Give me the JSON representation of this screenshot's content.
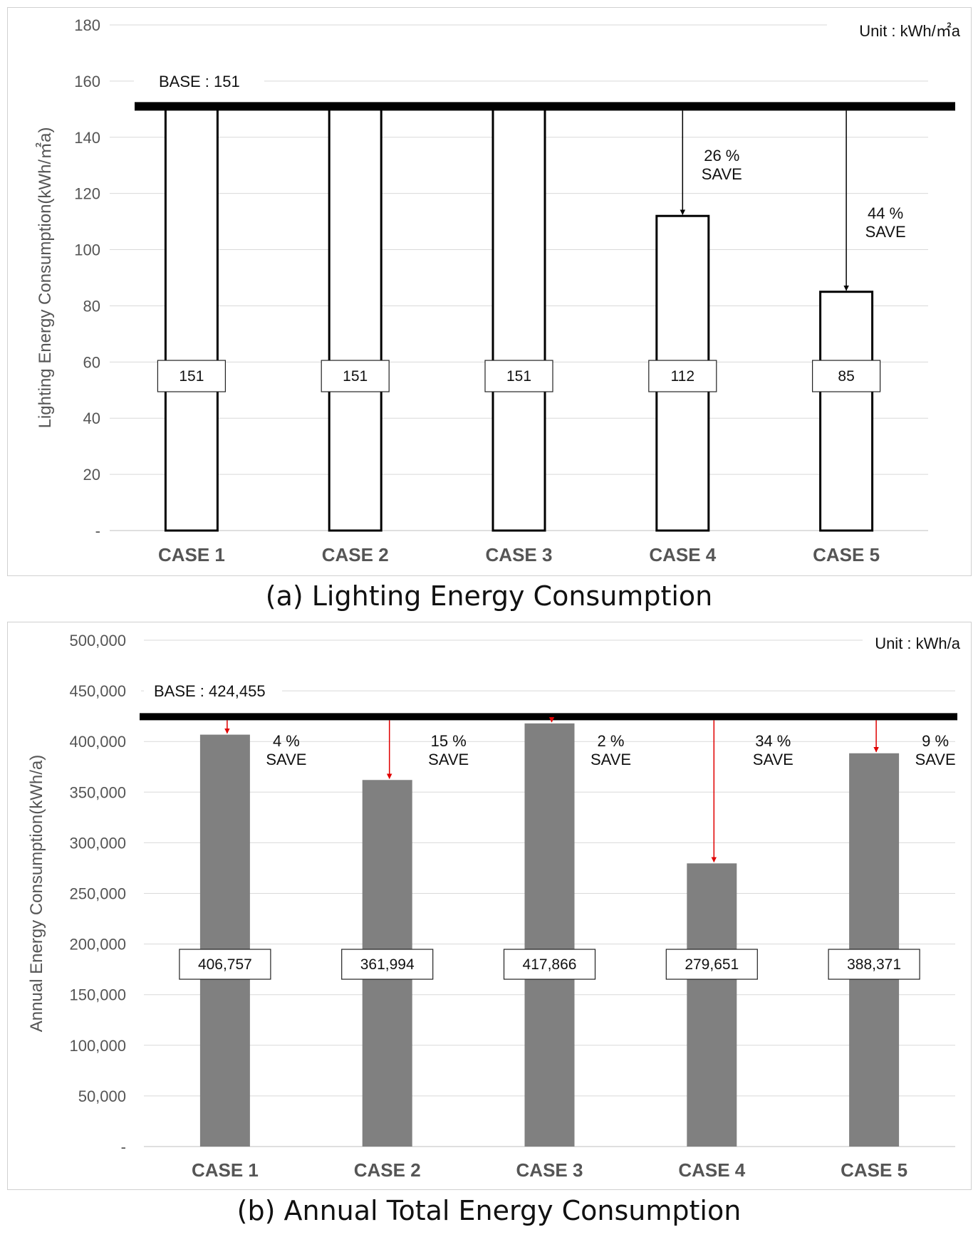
{
  "chart_data": [
    {
      "type": "bar",
      "caption": "(a) Lighting Energy Consumption",
      "ylabel": "Lighting Energy Consumption(kWh/㎡a)",
      "unit_label": "Unit : kWh/㎡a",
      "categories": [
        "CASE 1",
        "CASE 2",
        "CASE 3",
        "CASE 4",
        "CASE 5"
      ],
      "values": [
        151,
        151,
        151,
        112,
        85
      ],
      "value_labels": [
        "151",
        "151",
        "151",
        "112",
        "85"
      ],
      "ylim": [
        0,
        180
      ],
      "yticks": [
        0,
        20,
        40,
        60,
        80,
        100,
        120,
        140,
        160,
        180
      ],
      "ytick_labels": [
        "-",
        "20",
        "40",
        "60",
        "80",
        "100",
        "120",
        "140",
        "160",
        "180"
      ],
      "base_value": 151,
      "base_label": "BASE : 151",
      "savings": [
        {
          "index": 3,
          "percent": "26 %",
          "word": "SAVE"
        },
        {
          "index": 4,
          "percent": "44 %",
          "word": "SAVE"
        }
      ],
      "bar_style": "outline",
      "bar_fill": "#ffffff",
      "arrow_color": "#000000",
      "grid": true
    },
    {
      "type": "bar",
      "caption": "(b) Annual Total Energy Consumption",
      "ylabel": "Annual Energy Consumption(kWh/a)",
      "unit_label": "Unit : kWh/a",
      "categories": [
        "CASE 1",
        "CASE 2",
        "CASE 3",
        "CASE 4",
        "CASE 5"
      ],
      "values": [
        406757,
        361994,
        417866,
        279651,
        388371
      ],
      "value_labels": [
        "406,757",
        "361,994",
        "417,866",
        "279,651",
        "388,371"
      ],
      "ylim": [
        0,
        500000
      ],
      "yticks": [
        0,
        50000,
        100000,
        150000,
        200000,
        250000,
        300000,
        350000,
        400000,
        450000,
        500000
      ],
      "ytick_labels": [
        "-",
        "50,000",
        "100,000",
        "150,000",
        "200,000",
        "250,000",
        "300,000",
        "350,000",
        "400,000",
        "450,000",
        "500,000"
      ],
      "base_value": 424455,
      "base_label": "BASE : 424,455",
      "savings": [
        {
          "index": 0,
          "percent": "4 %",
          "word": "SAVE"
        },
        {
          "index": 1,
          "percent": "15 %",
          "word": "SAVE"
        },
        {
          "index": 2,
          "percent": "2 %",
          "word": "SAVE"
        },
        {
          "index": 3,
          "percent": "34 %",
          "word": "SAVE"
        },
        {
          "index": 4,
          "percent": "9 %",
          "word": "SAVE"
        }
      ],
      "bar_style": "filled",
      "bar_fill": "#808080",
      "arrow_color": "#e00000",
      "grid": true
    }
  ]
}
